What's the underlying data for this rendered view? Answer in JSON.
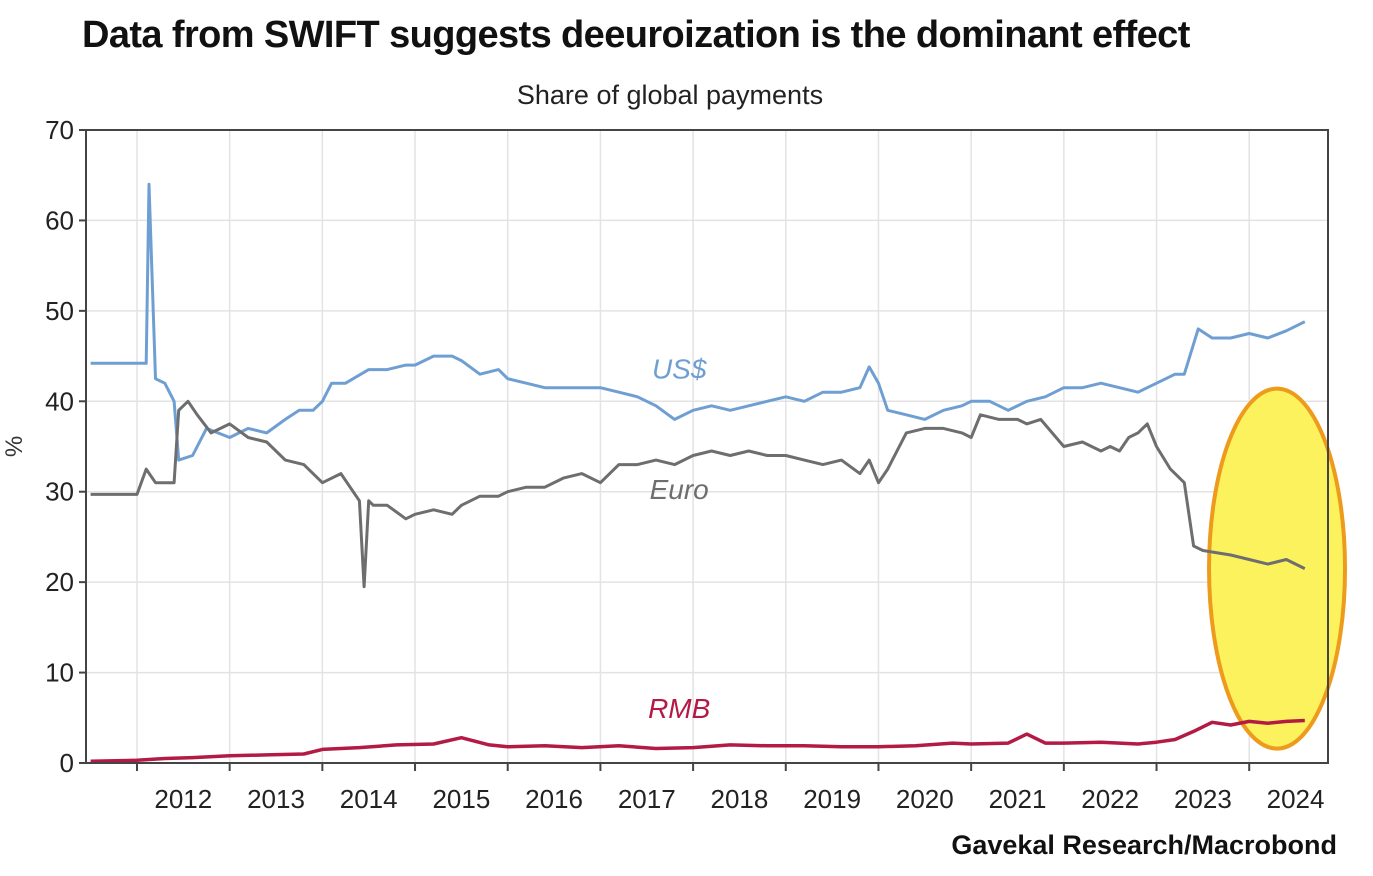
{
  "title": "Data from SWIFT suggests deeuroization is the dominant effect",
  "subtitle": "Share of global payments",
  "source": "Gavekal Research/Macrobond",
  "colors": {
    "usd": "#6f9fd2",
    "euro": "#6e6e6e",
    "rmb": "#b31b45",
    "highlight_fill": "#fbf25e",
    "highlight_stroke": "#ee9b1d",
    "grid": "#e3e3e3",
    "axis": "#444444"
  },
  "chart_data": {
    "type": "line",
    "title": "Data from SWIFT suggests deeuroization is the dominant effect",
    "subtitle": "Share of global payments",
    "xlabel": "",
    "ylabel": "%",
    "ylim": [
      0,
      70
    ],
    "yticks": [
      0,
      10,
      20,
      30,
      40,
      50,
      60,
      70
    ],
    "xlim": [
      2011.45,
      2024.85
    ],
    "xticks": [
      "2012",
      "2013",
      "2014",
      "2015",
      "2016",
      "2017",
      "2018",
      "2019",
      "2020",
      "2021",
      "2022",
      "2023",
      "2024"
    ],
    "grid": true,
    "annotation": "highlighted period 2023.9–2024.7 (yellow oval)",
    "series": [
      {
        "name": "US$",
        "x": [
          2011.5,
          2012.0,
          2012.1,
          2012.13,
          2012.2,
          2012.3,
          2012.4,
          2012.45,
          2012.6,
          2012.75,
          2013.0,
          2013.2,
          2013.4,
          2013.6,
          2013.75,
          2013.9,
          2014.0,
          2014.1,
          2014.25,
          2014.5,
          2014.7,
          2014.9,
          2015.0,
          2015.2,
          2015.4,
          2015.5,
          2015.7,
          2015.9,
          2016.0,
          2016.2,
          2016.4,
          2016.6,
          2016.8,
          2017.0,
          2017.2,
          2017.4,
          2017.6,
          2017.8,
          2018.0,
          2018.2,
          2018.4,
          2018.6,
          2018.8,
          2019.0,
          2019.2,
          2019.4,
          2019.6,
          2019.8,
          2019.9,
          2020.0,
          2020.1,
          2020.3,
          2020.5,
          2020.7,
          2020.9,
          2021.0,
          2021.2,
          2021.4,
          2021.6,
          2021.8,
          2022.0,
          2022.2,
          2022.4,
          2022.6,
          2022.8,
          2023.0,
          2023.2,
          2023.3,
          2023.45,
          2023.6,
          2023.8,
          2024.0,
          2024.2,
          2024.4,
          2024.6
        ],
        "values": [
          44.2,
          44.2,
          44.2,
          64.0,
          42.5,
          42.0,
          40.0,
          33.5,
          34.0,
          37.0,
          36.0,
          37.0,
          36.5,
          38.0,
          39.0,
          39.0,
          40.0,
          42.0,
          42.0,
          43.5,
          43.5,
          44.0,
          44.0,
          45.0,
          45.0,
          44.5,
          43.0,
          43.5,
          42.5,
          42.0,
          41.5,
          41.5,
          41.5,
          41.5,
          41.0,
          40.5,
          39.5,
          38.0,
          39.0,
          39.5,
          39.0,
          39.5,
          40.0,
          40.5,
          40.0,
          41.0,
          41.0,
          41.5,
          43.8,
          42.0,
          39.0,
          38.5,
          38.0,
          39.0,
          39.5,
          40.0,
          40.0,
          39.0,
          40.0,
          40.5,
          41.5,
          41.5,
          42.0,
          41.5,
          41.0,
          42.0,
          43.0,
          43.0,
          48.0,
          47.0,
          47.0,
          47.5,
          47.0,
          47.8,
          48.8
        ]
      },
      {
        "name": "Euro",
        "x": [
          2011.5,
          2012.0,
          2012.1,
          2012.2,
          2012.4,
          2012.45,
          2012.55,
          2012.65,
          2012.8,
          2013.0,
          2013.2,
          2013.4,
          2013.6,
          2013.8,
          2014.0,
          2014.2,
          2014.4,
          2014.45,
          2014.5,
          2014.55,
          2014.7,
          2014.9,
          2015.0,
          2015.2,
          2015.4,
          2015.5,
          2015.7,
          2015.9,
          2016.0,
          2016.2,
          2016.4,
          2016.6,
          2016.8,
          2017.0,
          2017.2,
          2017.4,
          2017.6,
          2017.8,
          2018.0,
          2018.2,
          2018.4,
          2018.6,
          2018.8,
          2019.0,
          2019.2,
          2019.4,
          2019.6,
          2019.8,
          2019.9,
          2020.0,
          2020.1,
          2020.3,
          2020.5,
          2020.7,
          2020.9,
          2021.0,
          2021.1,
          2021.3,
          2021.5,
          2021.6,
          2021.75,
          2022.0,
          2022.2,
          2022.4,
          2022.5,
          2022.6,
          2022.7,
          2022.8,
          2022.9,
          2023.0,
          2023.15,
          2023.3,
          2023.4,
          2023.5,
          2023.8,
          2024.0,
          2024.2,
          2024.4,
          2024.6
        ],
        "values": [
          29.7,
          29.7,
          32.5,
          31.0,
          31.0,
          39.0,
          40.0,
          38.5,
          36.5,
          37.5,
          36.0,
          35.5,
          33.5,
          33.0,
          31.0,
          32.0,
          29.0,
          19.5,
          29.0,
          28.5,
          28.5,
          27.0,
          27.5,
          28.0,
          27.5,
          28.5,
          29.5,
          29.5,
          30.0,
          30.5,
          30.5,
          31.5,
          32.0,
          31.0,
          33.0,
          33.0,
          33.5,
          33.0,
          34.0,
          34.5,
          34.0,
          34.5,
          34.0,
          34.0,
          33.5,
          33.0,
          33.5,
          32.0,
          33.5,
          31.0,
          32.5,
          36.5,
          37.0,
          37.0,
          36.5,
          36.0,
          38.5,
          38.0,
          38.0,
          37.5,
          38.0,
          35.0,
          35.5,
          34.5,
          35.0,
          34.5,
          36.0,
          36.5,
          37.5,
          35.0,
          32.5,
          31.0,
          24.0,
          23.5,
          23.0,
          22.5,
          22.0,
          22.5,
          21.5
        ]
      },
      {
        "name": "RMB",
        "x": [
          2011.5,
          2012.0,
          2012.3,
          2012.6,
          2013.0,
          2013.4,
          2013.8,
          2014.0,
          2014.4,
          2014.8,
          2015.2,
          2015.5,
          2015.8,
          2016.0,
          2016.4,
          2016.8,
          2017.2,
          2017.6,
          2018.0,
          2018.4,
          2018.8,
          2019.2,
          2019.6,
          2020.0,
          2020.4,
          2020.8,
          2021.0,
          2021.4,
          2021.6,
          2021.8,
          2022.0,
          2022.4,
          2022.8,
          2023.0,
          2023.2,
          2023.4,
          2023.6,
          2023.8,
          2024.0,
          2024.2,
          2024.4,
          2024.6
        ],
        "values": [
          0.2,
          0.3,
          0.5,
          0.6,
          0.8,
          0.9,
          1.0,
          1.5,
          1.7,
          2.0,
          2.1,
          2.8,
          2.0,
          1.8,
          1.9,
          1.7,
          1.9,
          1.6,
          1.7,
          2.0,
          1.9,
          1.9,
          1.8,
          1.8,
          1.9,
          2.2,
          2.1,
          2.2,
          3.2,
          2.2,
          2.2,
          2.3,
          2.1,
          2.3,
          2.6,
          3.5,
          4.5,
          4.2,
          4.6,
          4.4,
          4.6,
          4.7
        ]
      }
    ]
  }
}
